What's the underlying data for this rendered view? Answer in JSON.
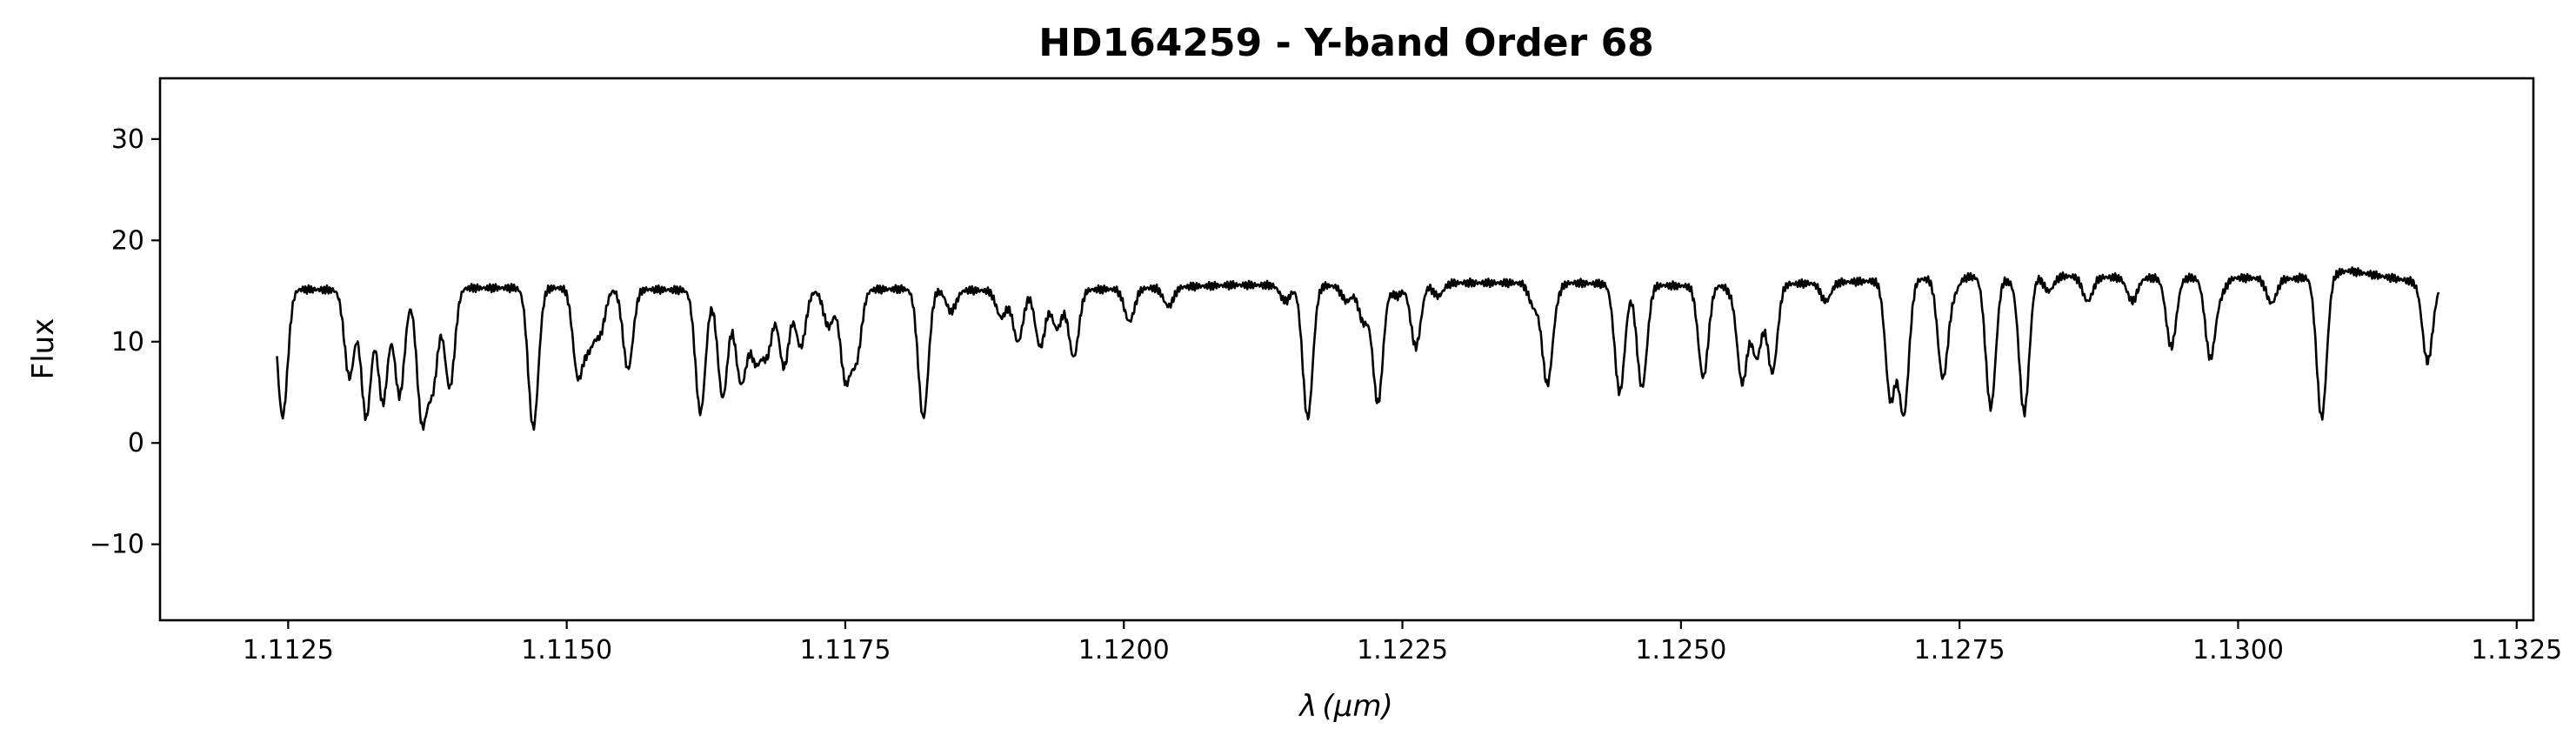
{
  "chart_data": {
    "type": "line",
    "title": "HD164259 - Y-band Order 68",
    "xlabel_symbol": "λ",
    "xlabel_unit": "(μm)",
    "ylabel": "Flux",
    "xlim": [
      1.11135,
      1.13265
    ],
    "ylim": [
      -17.5,
      36
    ],
    "x_ticks": [
      1.1125,
      1.115,
      1.1175,
      1.12,
      1.1225,
      1.125,
      1.1275,
      1.13,
      1.1325
    ],
    "x_tick_labels": [
      "1.1125",
      "1.1150",
      "1.1175",
      "1.1200",
      "1.1225",
      "1.1250",
      "1.1275",
      "1.1300",
      "1.1325"
    ],
    "y_ticks": [
      -10,
      0,
      10,
      20,
      30
    ],
    "y_tick_labels": [
      "−10",
      "0",
      "10",
      "20",
      "30"
    ],
    "grid": false,
    "line_color": "#000000",
    "series": [
      {
        "x_range": [
          1.1124,
          1.1318
        ],
        "continuum": [
          [
            1.1124,
            15.2
          ],
          [
            1.1135,
            15.0
          ],
          [
            1.114,
            15.3
          ],
          [
            1.115,
            15.3
          ],
          [
            1.116,
            15.1
          ],
          [
            1.117,
            15.0
          ],
          [
            1.118,
            15.2
          ],
          [
            1.119,
            15.0
          ],
          [
            1.12,
            15.2
          ],
          [
            1.121,
            15.6
          ],
          [
            1.122,
            15.5
          ],
          [
            1.123,
            15.8
          ],
          [
            1.124,
            15.8
          ],
          [
            1.125,
            15.5
          ],
          [
            1.126,
            15.7
          ],
          [
            1.127,
            16.1
          ],
          [
            1.128,
            16.6
          ],
          [
            1.129,
            16.3
          ],
          [
            1.13,
            16.3
          ],
          [
            1.1305,
            16.2
          ],
          [
            1.131,
            17.0
          ],
          [
            1.1318,
            15.5
          ]
        ],
        "absorption_lines": [
          [
            1.11245,
            2.6
          ],
          [
            1.11305,
            6.5
          ],
          [
            1.1132,
            2.5
          ],
          [
            1.11335,
            4.0
          ],
          [
            1.1135,
            4.7
          ],
          [
            1.1137,
            2.5
          ],
          [
            1.1138,
            6.0
          ],
          [
            1.11395,
            5.5
          ],
          [
            1.1147,
            1.5
          ],
          [
            1.1151,
            6.8
          ],
          [
            1.1152,
            10.0
          ],
          [
            1.1153,
            11.0
          ],
          [
            1.11555,
            7.3
          ],
          [
            1.1162,
            3.0
          ],
          [
            1.1164,
            4.5
          ],
          [
            1.11655,
            8.5
          ],
          [
            1.1166,
            11.0
          ],
          [
            1.1167,
            8.5
          ],
          [
            1.1168,
            9.0
          ],
          [
            1.11695,
            7.5
          ],
          [
            1.1171,
            9.5
          ],
          [
            1.11735,
            11.5
          ],
          [
            1.1175,
            6.5
          ],
          [
            1.1176,
            8.5
          ],
          [
            1.1182,
            2.5
          ],
          [
            1.11845,
            13.0
          ],
          [
            1.1189,
            12.4
          ],
          [
            1.11905,
            10.0
          ],
          [
            1.11925,
            9.5
          ],
          [
            1.1194,
            11.3
          ],
          [
            1.11955,
            8.5
          ],
          [
            1.12005,
            12.0
          ],
          [
            1.1204,
            13.5
          ],
          [
            1.12145,
            14.0
          ],
          [
            1.12165,
            2.5
          ],
          [
            1.122,
            14.0
          ],
          [
            1.12215,
            12.0
          ],
          [
            1.12228,
            4.0
          ],
          [
            1.12245,
            14.5
          ],
          [
            1.12262,
            9.5
          ],
          [
            1.12282,
            14.5
          ],
          [
            1.12368,
            13.5
          ],
          [
            1.1238,
            6.0
          ],
          [
            1.12388,
            15.0
          ],
          [
            1.12445,
            5.0
          ],
          [
            1.12465,
            5.5
          ],
          [
            1.1252,
            6.5
          ],
          [
            1.12545,
            15.0
          ],
          [
            1.12555,
            6.0
          ],
          [
            1.12568,
            8.5
          ],
          [
            1.12582,
            7.0
          ],
          [
            1.1263,
            14.0
          ],
          [
            1.12688,
            4.5
          ],
          [
            1.127,
            3.0
          ],
          [
            1.12735,
            6.5
          ],
          [
            1.12745,
            15.0
          ],
          [
            1.12778,
            3.5
          ],
          [
            1.12795,
            16.0
          ],
          [
            1.12808,
            3.0
          ],
          [
            1.1283,
            15.0
          ],
          [
            1.12865,
            14.0
          ],
          [
            1.12905,
            14.0
          ],
          [
            1.1294,
            9.5
          ],
          [
            1.12975,
            8.5
          ],
          [
            1.12985,
            15.0
          ],
          [
            1.1303,
            13.8
          ],
          [
            1.13075,
            2.5
          ],
          [
            1.1317,
            8.0
          ]
        ]
      }
    ]
  }
}
